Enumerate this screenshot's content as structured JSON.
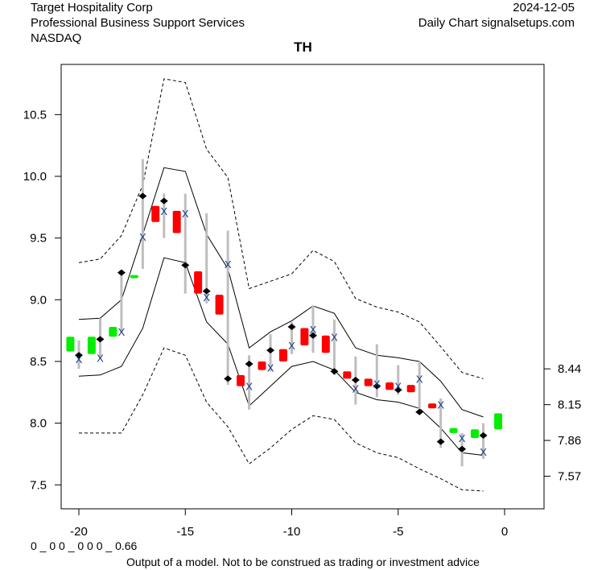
{
  "header": {
    "company": "Target Hospitality Corp",
    "sector": "Professional Business Support Services",
    "exchange": "NASDAQ",
    "date": "2024-12-05",
    "source": "Daily Chart signalsetups.com"
  },
  "footer": {
    "code": "0 _ 0 0 _ 0 0 0 _ 0.66",
    "disclaimer": "Output of a model. Not to be construed as trading or investment advice"
  },
  "colors": {
    "up": "#00ee00",
    "down": "#ff0000",
    "range": "#bebebe",
    "band": "#000000",
    "x_marker": "#1a3a8a"
  },
  "chart_data": {
    "type": "line",
    "title": "TH",
    "xlabel": "",
    "ylabel": "",
    "xlim": [
      -21,
      2
    ],
    "ylim": [
      7.3,
      10.9
    ],
    "grid": false,
    "x_ticks": [
      -20,
      -15,
      -10,
      -5,
      0
    ],
    "x_tick_labels": [
      "-20",
      "-15",
      "-10",
      "-5",
      "0"
    ],
    "y_ticks": [
      7.5,
      8.0,
      8.5,
      9.0,
      9.5,
      10.0,
      10.5
    ],
    "y_tick_labels": [
      "7.5",
      "8.0",
      "8.5",
      "9.0",
      "9.5",
      "10.0",
      "10.5"
    ],
    "right_ticks": [
      8.44,
      8.15,
      7.86,
      7.57
    ],
    "right_tick_labels": [
      "8.44",
      "8.15",
      "7.86",
      "7.57"
    ],
    "band_x": [
      -20,
      -19,
      -18,
      -17,
      -16,
      -15,
      -14,
      -13,
      -12,
      -11,
      -10,
      -9,
      -8,
      -7,
      -6,
      -5,
      -4,
      -3,
      -2,
      -1
    ],
    "series": [
      {
        "name": "inner-upper",
        "style": "solid",
        "values": [
          8.84,
          8.85,
          9.0,
          9.53,
          10.07,
          10.04,
          9.53,
          9.25,
          8.61,
          8.74,
          8.83,
          8.95,
          8.89,
          8.61,
          8.55,
          8.53,
          8.5,
          8.34,
          8.11,
          8.05
        ]
      },
      {
        "name": "inner-lower",
        "style": "solid",
        "values": [
          8.38,
          8.39,
          8.46,
          8.77,
          9.34,
          9.3,
          8.82,
          8.64,
          8.14,
          8.3,
          8.46,
          8.5,
          8.43,
          8.25,
          8.19,
          8.17,
          8.12,
          7.96,
          7.76,
          7.74
        ]
      },
      {
        "name": "outer-upper",
        "style": "dashed",
        "values": [
          9.3,
          9.33,
          9.52,
          9.93,
          10.79,
          10.76,
          10.22,
          9.99,
          9.09,
          9.15,
          9.21,
          9.4,
          9.31,
          9.01,
          8.94,
          8.9,
          8.82,
          8.62,
          8.41,
          8.36
        ]
      },
      {
        "name": "outer-lower",
        "style": "dashed",
        "values": [
          7.92,
          7.92,
          7.92,
          8.23,
          8.61,
          8.55,
          8.17,
          7.97,
          7.67,
          7.8,
          7.95,
          8.06,
          8.03,
          7.84,
          7.76,
          7.72,
          7.63,
          7.55,
          7.46,
          7.45
        ]
      }
    ],
    "candles": [
      {
        "x": -20.4,
        "open": 8.7,
        "close": 8.58,
        "dir": "up"
      },
      {
        "x": -19.4,
        "open": 8.7,
        "close": 8.56,
        "dir": "up"
      },
      {
        "x": -18.4,
        "open": 8.78,
        "close": 8.7,
        "dir": "up"
      },
      {
        "x": -17.4,
        "open": 9.2,
        "close": 9.18,
        "dir": "up"
      },
      {
        "x": -16.4,
        "open": 9.76,
        "close": 9.63,
        "dir": "down"
      },
      {
        "x": -15.4,
        "open": 9.72,
        "close": 9.54,
        "dir": "down"
      },
      {
        "x": -14.4,
        "open": 9.23,
        "close": 9.05,
        "dir": "down"
      },
      {
        "x": -13.4,
        "open": 9.04,
        "close": 8.88,
        "dir": "down"
      },
      {
        "x": -12.4,
        "open": 8.39,
        "close": 8.3,
        "dir": "down"
      },
      {
        "x": -11.4,
        "open": 8.5,
        "close": 8.43,
        "dir": "down"
      },
      {
        "x": -10.4,
        "open": 8.6,
        "close": 8.5,
        "dir": "down"
      },
      {
        "x": -9.4,
        "open": 8.77,
        "close": 8.63,
        "dir": "down"
      },
      {
        "x": -8.4,
        "open": 8.71,
        "close": 8.57,
        "dir": "down"
      },
      {
        "x": -7.4,
        "open": 8.42,
        "close": 8.36,
        "dir": "down"
      },
      {
        "x": -6.4,
        "open": 8.36,
        "close": 8.3,
        "dir": "down"
      },
      {
        "x": -5.4,
        "open": 8.33,
        "close": 8.27,
        "dir": "down"
      },
      {
        "x": -4.4,
        "open": 8.31,
        "close": 8.25,
        "dir": "down"
      },
      {
        "x": -3.4,
        "open": 8.16,
        "close": 8.12,
        "dir": "down"
      },
      {
        "x": -2.4,
        "open": 7.96,
        "close": 7.92,
        "dir": "up"
      },
      {
        "x": -1.4,
        "open": 7.95,
        "close": 7.88,
        "dir": "up"
      },
      {
        "x": -0.3,
        "open": 8.08,
        "close": 7.95,
        "dir": "up"
      }
    ],
    "ranges": [
      {
        "x": -20,
        "high": 8.67,
        "low": 8.44,
        "marker": 8.55,
        "xmark": 8.52
      },
      {
        "x": -19,
        "high": 8.85,
        "low": 8.52,
        "marker": 8.68,
        "xmark": 8.53
      },
      {
        "x": -18,
        "high": 9.22,
        "low": 8.73,
        "marker": 9.22,
        "xmark": 8.74
      },
      {
        "x": -17,
        "high": 10.14,
        "low": 9.25,
        "marker": 9.84,
        "xmark": 9.51
      },
      {
        "x": -16,
        "high": 9.86,
        "low": 9.5,
        "marker": 9.8,
        "xmark": 9.72
      },
      {
        "x": -15,
        "high": 9.86,
        "low": 9.05,
        "marker": 9.28,
        "xmark": 9.7
      },
      {
        "x": -14,
        "high": 9.7,
        "low": 8.97,
        "marker": 9.07,
        "xmark": 9.02
      },
      {
        "x": -13,
        "high": 9.56,
        "low": 8.31,
        "marker": 8.36,
        "xmark": 9.29
      },
      {
        "x": -12,
        "high": 8.55,
        "low": 8.11,
        "marker": 8.48,
        "xmark": 8.3
      },
      {
        "x": -11,
        "high": 8.72,
        "low": 8.42,
        "marker": 8.59,
        "xmark": 8.45
      },
      {
        "x": -10,
        "high": 8.82,
        "low": 8.56,
        "marker": 8.78,
        "xmark": 8.63
      },
      {
        "x": -9,
        "high": 8.95,
        "low": 8.57,
        "marker": 8.71,
        "xmark": 8.76
      },
      {
        "x": -8,
        "high": 8.84,
        "low": 8.39,
        "marker": 8.42,
        "xmark": 8.7
      },
      {
        "x": -7,
        "high": 8.54,
        "low": 8.15,
        "marker": 8.35,
        "xmark": 8.28
      },
      {
        "x": -6,
        "high": 8.64,
        "low": 8.21,
        "marker": 8.3,
        "xmark": 8.32
      },
      {
        "x": -5,
        "high": 8.47,
        "low": 8.23,
        "marker": 8.27,
        "xmark": 8.3
      },
      {
        "x": -4,
        "high": 8.5,
        "low": 8.09,
        "marker": 8.09,
        "xmark": 8.36
      },
      {
        "x": -3,
        "high": 8.2,
        "low": 7.8,
        "marker": 7.85,
        "xmark": 8.15
      },
      {
        "x": -2,
        "high": 7.92,
        "low": 7.65,
        "marker": 7.79,
        "xmark": 7.88
      },
      {
        "x": -1,
        "high": 8.0,
        "low": 7.71,
        "marker": 7.9,
        "xmark": 7.77
      }
    ]
  }
}
